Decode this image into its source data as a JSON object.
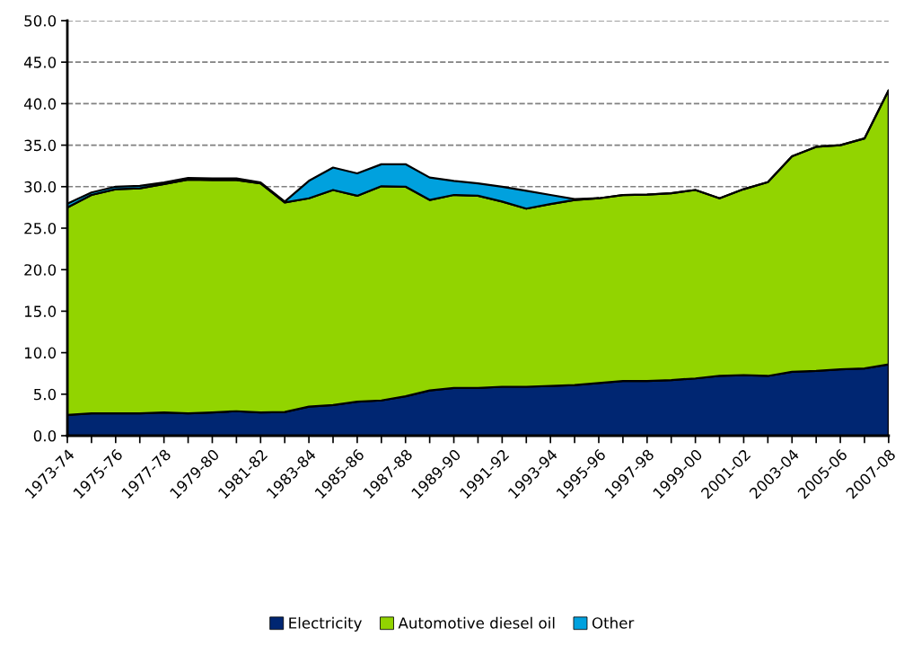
{
  "chart_data": {
    "type": "area",
    "stacked": true,
    "categories": [
      "1973-74",
      null,
      "1975-76",
      null,
      "1977-78",
      null,
      "1979-80",
      null,
      "1981-82",
      null,
      "1983-84",
      null,
      "1985-86",
      null,
      "1987-88",
      null,
      "1989-90",
      null,
      "1991-92",
      null,
      "1993-94",
      null,
      "1995-96",
      null,
      "1997-98",
      null,
      "1999-00",
      null,
      "2001-02",
      null,
      "2003-04",
      null,
      "2005-06",
      null,
      "2007-08"
    ],
    "series": [
      {
        "name": "Electricity",
        "color": "#002672",
        "values": [
          2.5,
          2.7,
          2.7,
          2.7,
          2.8,
          2.7,
          2.8,
          2.95,
          2.8,
          2.85,
          3.5,
          3.7,
          4.1,
          4.25,
          4.75,
          5.45,
          5.75,
          5.75,
          5.9,
          5.9,
          6.0,
          6.1,
          6.35,
          6.6,
          6.6,
          6.7,
          6.9,
          7.2,
          7.3,
          7.2,
          7.7,
          7.8,
          8.0,
          8.1,
          8.6
        ]
      },
      {
        "name": "Automotive diesel oil",
        "color": "#92d400",
        "values": [
          25.0,
          26.3,
          27.0,
          27.1,
          27.5,
          28.15,
          28.0,
          27.85,
          27.6,
          25.25,
          25.1,
          25.9,
          24.8,
          25.8,
          25.25,
          22.95,
          23.25,
          23.15,
          22.3,
          21.45,
          21.9,
          22.3,
          22.25,
          22.4,
          22.45,
          22.5,
          22.7,
          21.4,
          22.4,
          23.35,
          25.95,
          27.0,
          27.0,
          27.7,
          33.0
        ]
      },
      {
        "name": "Other",
        "color": "#00a1de",
        "values": [
          0.45,
          0.3,
          0.3,
          0.3,
          0.2,
          0.2,
          0.2,
          0.2,
          0.1,
          0.1,
          2.1,
          2.7,
          2.7,
          2.65,
          2.7,
          2.7,
          1.7,
          1.5,
          1.8,
          2.15,
          1.1,
          0.1,
          0,
          0,
          0,
          0,
          0,
          0,
          0,
          0,
          0,
          0,
          0,
          0,
          0
        ]
      }
    ],
    "ylim": [
      0,
      50
    ],
    "yticks": [
      {
        "value": 0,
        "label": "0.0"
      },
      {
        "value": 5,
        "label": "5.0"
      },
      {
        "value": 10,
        "label": "10.0"
      },
      {
        "value": 15,
        "label": "15.0"
      },
      {
        "value": 20,
        "label": "20.0"
      },
      {
        "value": 25,
        "label": "25.0"
      },
      {
        "value": 30,
        "label": "30.0"
      },
      {
        "value": 35,
        "label": "35.0"
      },
      {
        "value": 40,
        "label": "40.0"
      },
      {
        "value": 45,
        "label": "45.0"
      },
      {
        "value": 50,
        "label": "50.0"
      }
    ],
    "grid": "y",
    "legend": "bottom"
  }
}
